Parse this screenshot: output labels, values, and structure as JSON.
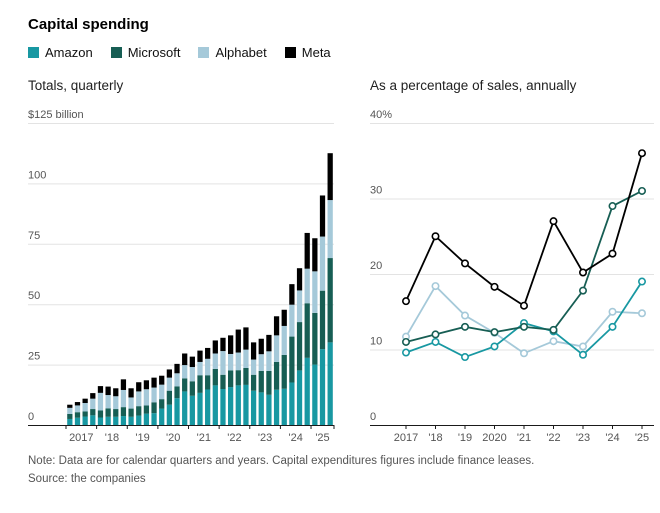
{
  "title": "Capital spending",
  "legend": [
    {
      "label": "Amazon",
      "color": "#1898a2"
    },
    {
      "label": "Microsoft",
      "color": "#175e54"
    },
    {
      "label": "Alphabet",
      "color": "#a5c9d9"
    },
    {
      "label": "Meta",
      "color": "#000000"
    }
  ],
  "note": "Note: Data are for calendar quarters and years. Capital expenditures figures include finance leases.",
  "source": "Source: the companies",
  "chart_data": [
    {
      "type": "bar",
      "stacked": true,
      "title": "Totals, quarterly",
      "ylabel_top": "$125 billion",
      "ylim": [
        0,
        125
      ],
      "yticks": [
        0,
        25,
        50,
        75,
        100,
        125
      ],
      "grid": true,
      "x_tick_labels": [
        "2017",
        "'18",
        "'19",
        "'20",
        "'21",
        "'22",
        "'23",
        "'24",
        "'25"
      ],
      "bars_per_group": [
        4,
        4,
        4,
        4,
        4,
        4,
        4,
        4,
        3
      ],
      "series": [
        {
          "name": "Amazon",
          "values": [
            2.5,
            3.0,
            3.5,
            4.0,
            3.1,
            3.4,
            3.4,
            3.7,
            3.4,
            3.9,
            4.7,
            4.9,
            6.8,
            8.4,
            11.1,
            13.9,
            12.1,
            13.3,
            14.7,
            16.4,
            14.9,
            15.7,
            16.4,
            16.6,
            14.2,
            13.5,
            12.5,
            14.6,
            15.0,
            17.6,
            22.6,
            27.8,
            25.0,
            31.4,
            34.2
          ]
        },
        {
          "name": "Microsoft",
          "values": [
            2.1,
            2.3,
            2.1,
            2.6,
            2.9,
            3.5,
            3.2,
            3.7,
            3.4,
            3.9,
            3.4,
            4.5,
            3.9,
            5.8,
            4.9,
            5.4,
            6.0,
            7.3,
            5.9,
            6.8,
            5.9,
            6.9,
            6.3,
            7.0,
            6.6,
            8.9,
            9.9,
            11.5,
            14.0,
            19.0,
            20.0,
            22.6,
            21.4,
            24.2,
            34.9
          ]
        },
        {
          "name": "Alphabet",
          "values": [
            2.5,
            2.8,
            3.5,
            4.3,
            7.3,
            5.5,
            5.3,
            7.1,
            4.6,
            6.1,
            6.7,
            6.1,
            6.0,
            5.4,
            5.4,
            5.5,
            5.9,
            5.5,
            6.8,
            6.4,
            9.8,
            6.8,
            7.3,
            7.6,
            6.3,
            6.9,
            8.1,
            11.0,
            12.0,
            13.2,
            13.1,
            14.3,
            17.2,
            22.4,
            24.0
          ]
        },
        {
          "name": "Meta",
          "values": [
            1.3,
            1.4,
            1.8,
            2.3,
            2.8,
            3.5,
            3.3,
            4.4,
            3.8,
            3.8,
            3.7,
            4.1,
            3.7,
            3.4,
            3.9,
            4.8,
            4.3,
            4.7,
            4.5,
            5.4,
            5.5,
            7.7,
            9.5,
            9.2,
            7.1,
            6.4,
            6.8,
            7.9,
            6.7,
            8.5,
            9.2,
            14.8,
            13.7,
            17.0,
            19.4
          ]
        }
      ]
    },
    {
      "type": "line",
      "title": "As a percentage of sales, annually",
      "ylabel_top": "40%",
      "ylim": [
        0,
        40
      ],
      "yticks": [
        0,
        10,
        20,
        30,
        40
      ],
      "grid": true,
      "marker": "open-circle",
      "x": [
        "2017",
        "'18",
        "'19",
        "2020",
        "'21",
        "'22",
        "'23",
        "'24",
        "'25"
      ],
      "series": [
        {
          "name": "Alphabet",
          "values": [
            11.7,
            18.4,
            14.5,
            12.2,
            9.5,
            11.1,
            10.4,
            15.0,
            14.8
          ]
        },
        {
          "name": "Amazon",
          "values": [
            9.6,
            11.0,
            9.0,
            10.4,
            13.5,
            12.4,
            9.3,
            13.0,
            19.0
          ]
        },
        {
          "name": "Microsoft",
          "values": [
            11.0,
            12.0,
            13.0,
            12.3,
            13.0,
            12.6,
            17.8,
            29.0,
            31.0
          ]
        },
        {
          "name": "Meta",
          "values": [
            16.4,
            25.0,
            21.4,
            18.3,
            15.8,
            27.0,
            20.2,
            22.7,
            36.0
          ]
        }
      ]
    }
  ]
}
